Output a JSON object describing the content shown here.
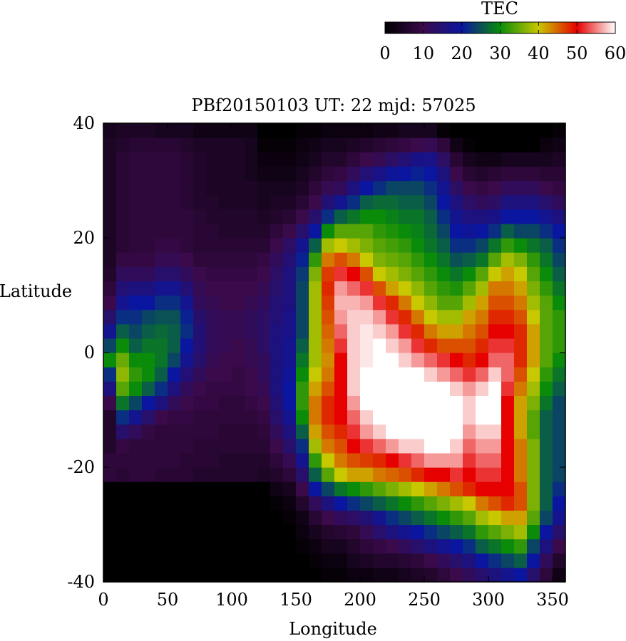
{
  "chart_data": {
    "type": "heatmap",
    "title": "PBf20150103  UT: 22  mjd: 57025",
    "xlabel": "Longitude",
    "ylabel": "Latitude",
    "xlim": [
      0,
      360
    ],
    "ylim": [
      -40,
      40
    ],
    "x_ticks": [
      "0",
      "50",
      "100",
      "150",
      "200",
      "250",
      "300",
      "350"
    ],
    "y_ticks": [
      "40",
      "20",
      "0",
      "-20",
      "-40"
    ],
    "grid": false,
    "colorbar": {
      "label": "TEC",
      "range": [
        0,
        60
      ],
      "ticks": [
        "0",
        "10",
        "20",
        "30",
        "40",
        "50",
        "60"
      ],
      "placement": "top-right"
    },
    "columns": [
      {
        "lon": 0,
        "z": [
          0,
          0,
          0,
          0,
          0,
          0,
          0,
          8,
          8,
          6,
          6,
          6,
          10,
          16,
          22,
          30,
          24,
          18,
          14,
          10,
          8,
          6,
          5,
          5,
          5,
          5,
          5,
          5,
          5,
          5,
          5,
          4
        ]
      },
      {
        "lon": 10,
        "z": [
          0,
          0,
          0,
          0,
          0,
          0,
          0,
          7,
          8,
          9,
          14,
          22,
          28,
          34,
          37,
          35,
          30,
          26,
          22,
          18,
          15,
          12,
          9,
          7,
          7,
          7,
          7,
          7,
          7,
          7,
          6,
          5
        ]
      },
      {
        "lon": 20,
        "z": [
          0,
          0,
          0,
          0,
          0,
          0,
          0,
          8,
          8,
          8,
          12,
          18,
          24,
          30,
          32,
          30,
          26,
          24,
          22,
          20,
          16,
          12,
          9,
          8,
          8,
          8,
          8,
          8,
          8,
          8,
          7,
          5
        ]
      },
      {
        "lon": 30,
        "z": [
          0,
          0,
          0,
          0,
          0,
          0,
          0,
          8,
          8,
          8,
          9,
          14,
          20,
          26,
          30,
          30,
          28,
          26,
          24,
          20,
          16,
          12,
          9,
          8,
          8,
          8,
          8,
          8,
          8,
          8,
          7,
          5
        ]
      },
      {
        "lon": 40,
        "z": [
          0,
          0,
          0,
          0,
          0,
          0,
          0,
          7,
          8,
          8,
          8,
          10,
          16,
          22,
          26,
          28,
          28,
          27,
          25,
          22,
          18,
          14,
          11,
          9,
          8,
          8,
          8,
          8,
          8,
          8,
          7,
          4
        ]
      },
      {
        "lon": 50,
        "z": [
          0,
          0,
          0,
          0,
          0,
          0,
          0,
          7,
          8,
          8,
          8,
          9,
          12,
          16,
          20,
          24,
          26,
          26,
          25,
          22,
          18,
          14,
          11,
          9,
          8,
          8,
          8,
          8,
          8,
          8,
          7,
          4
        ]
      },
      {
        "lon": 60,
        "z": [
          0,
          0,
          0,
          0,
          0,
          0,
          0,
          7,
          7,
          8,
          8,
          9,
          10,
          12,
          15,
          18,
          20,
          22,
          21,
          18,
          15,
          12,
          10,
          8,
          8,
          8,
          7,
          7,
          7,
          7,
          6,
          4
        ]
      },
      {
        "lon": 70,
        "z": [
          0,
          0,
          0,
          0,
          0,
          0,
          0,
          6,
          7,
          7,
          8,
          8,
          9,
          10,
          12,
          14,
          15,
          15,
          14,
          12,
          11,
          10,
          8,
          7,
          7,
          7,
          6,
          6,
          6,
          6,
          5,
          3
        ]
      },
      {
        "lon": 80,
        "z": [
          0,
          0,
          0,
          0,
          0,
          0,
          0,
          6,
          7,
          7,
          8,
          8,
          9,
          9,
          10,
          11,
          12,
          12,
          12,
          11,
          10,
          9,
          8,
          7,
          7,
          6,
          6,
          5,
          5,
          5,
          5,
          3
        ]
      },
      {
        "lon": 90,
        "z": [
          0,
          0,
          0,
          0,
          0,
          0,
          0,
          6,
          6,
          7,
          7,
          8,
          8,
          9,
          10,
          10,
          11,
          11,
          11,
          10,
          10,
          9,
          8,
          7,
          6,
          6,
          5,
          5,
          5,
          5,
          5,
          3
        ]
      },
      {
        "lon": 100,
        "z": [
          0,
          0,
          0,
          0,
          0,
          0,
          0,
          6,
          6,
          7,
          7,
          8,
          8,
          9,
          9,
          10,
          10,
          11,
          11,
          10,
          10,
          9,
          8,
          7,
          6,
          6,
          5,
          5,
          5,
          5,
          5,
          3
        ]
      },
      {
        "lon": 110,
        "z": [
          0,
          0,
          0,
          0,
          0,
          0,
          0,
          6,
          6,
          7,
          7,
          8,
          9,
          10,
          10,
          11,
          11,
          12,
          12,
          11,
          10,
          9,
          8,
          7,
          6,
          6,
          5,
          5,
          4,
          4,
          4,
          3
        ]
      },
      {
        "lon": 120,
        "z": [
          0,
          0,
          0,
          0,
          0,
          0,
          0,
          5,
          6,
          7,
          8,
          9,
          10,
          11,
          12,
          12,
          13,
          13,
          13,
          12,
          11,
          10,
          9,
          7,
          6,
          5,
          4,
          4,
          3,
          2,
          1,
          0
        ]
      },
      {
        "lon": 130,
        "z": [
          0,
          0,
          0,
          0,
          0,
          1,
          3,
          6,
          8,
          10,
          12,
          14,
          15,
          16,
          16,
          16,
          16,
          16,
          15,
          15,
          14,
          13,
          12,
          10,
          8,
          6,
          5,
          4,
          3,
          2,
          1,
          0
        ]
      },
      {
        "lon": 140,
        "z": [
          0,
          0,
          0,
          0,
          1,
          2,
          4,
          8,
          11,
          14,
          16,
          18,
          20,
          20,
          19,
          18,
          18,
          17,
          17,
          16,
          16,
          16,
          15,
          13,
          10,
          7,
          5,
          4,
          3,
          2,
          1,
          0
        ]
      },
      {
        "lon": 150,
        "z": [
          0,
          0,
          1,
          2,
          3,
          6,
          10,
          14,
          18,
          22,
          26,
          30,
          32,
          32,
          30,
          28,
          26,
          24,
          24,
          24,
          24,
          23,
          21,
          18,
          14,
          10,
          7,
          5,
          4,
          3,
          2,
          1
        ]
      },
      {
        "lon": 160,
        "z": [
          0,
          1,
          2,
          4,
          7,
          12,
          20,
          26,
          32,
          38,
          42,
          44,
          44,
          42,
          40,
          38,
          38,
          38,
          38,
          38,
          38,
          36,
          32,
          26,
          20,
          14,
          10,
          8,
          6,
          4,
          3,
          1
        ]
      },
      {
        "lon": 170,
        "z": [
          1,
          2,
          4,
          6,
          10,
          16,
          24,
          34,
          40,
          44,
          46,
          48,
          48,
          46,
          44,
          43,
          44,
          45,
          46,
          47,
          48,
          47,
          44,
          38,
          30,
          22,
          15,
          11,
          8,
          6,
          4,
          2
        ]
      },
      {
        "lon": 180,
        "z": [
          1,
          2,
          4,
          7,
          12,
          20,
          28,
          40,
          44,
          46,
          48,
          50,
          50,
          50,
          50,
          50,
          52,
          54,
          56,
          57,
          56,
          52,
          46,
          40,
          34,
          26,
          18,
          12,
          9,
          6,
          4,
          2
        ]
      },
      {
        "lon": 190,
        "z": [
          2,
          4,
          6,
          8,
          13,
          22,
          30,
          42,
          46,
          50,
          52,
          54,
          56,
          58,
          58,
          58,
          58,
          58,
          58,
          57,
          54,
          50,
          44,
          38,
          34,
          28,
          22,
          16,
          12,
          8,
          5,
          2
        ]
      },
      {
        "lon": 200,
        "z": [
          2,
          5,
          8,
          11,
          15,
          24,
          32,
          42,
          47,
          52,
          56,
          58,
          60,
          60,
          60,
          59,
          59,
          59,
          58,
          56,
          52,
          46,
          40,
          36,
          34,
          30,
          26,
          20,
          15,
          10,
          6,
          2
        ]
      },
      {
        "lon": 210,
        "z": [
          3,
          6,
          9,
          14,
          18,
          26,
          34,
          44,
          48,
          54,
          58,
          60,
          60,
          60,
          60,
          60,
          60,
          58,
          56,
          52,
          46,
          40,
          36,
          34,
          32,
          30,
          27,
          22,
          17,
          11,
          7,
          3
        ]
      },
      {
        "lon": 220,
        "z": [
          3,
          6,
          10,
          16,
          22,
          28,
          36,
          45,
          50,
          56,
          60,
          60,
          60,
          60,
          60,
          60,
          58,
          56,
          52,
          48,
          42,
          38,
          35,
          33,
          31,
          29,
          27,
          24,
          19,
          13,
          8,
          3
        ]
      },
      {
        "lon": 230,
        "z": [
          4,
          7,
          12,
          18,
          24,
          30,
          38,
          46,
          52,
          58,
          60,
          60,
          60,
          60,
          60,
          58,
          56,
          52,
          48,
          44,
          40,
          36,
          34,
          32,
          30,
          28,
          26,
          24,
          20,
          15,
          9,
          4
        ]
      },
      {
        "lon": 240,
        "z": [
          5,
          8,
          14,
          20,
          26,
          32,
          40,
          48,
          54,
          58,
          60,
          60,
          60,
          60,
          60,
          56,
          52,
          48,
          44,
          40,
          37,
          34,
          32,
          30,
          29,
          28,
          26,
          24,
          21,
          17,
          10,
          4
        ]
      },
      {
        "lon": 250,
        "z": [
          6,
          10,
          16,
          22,
          28,
          34,
          42,
          50,
          56,
          60,
          60,
          60,
          60,
          60,
          58,
          54,
          48,
          44,
          40,
          37,
          34,
          32,
          30,
          28,
          27,
          26,
          24,
          22,
          20,
          17,
          11,
          4
        ]
      },
      {
        "lon": 260,
        "z": [
          8,
          12,
          18,
          24,
          30,
          36,
          44,
          50,
          56,
          60,
          60,
          60,
          60,
          60,
          56,
          52,
          46,
          42,
          38,
          34,
          32,
          30,
          28,
          26,
          24,
          22,
          20,
          18,
          16,
          13,
          8,
          1
        ]
      },
      {
        "lon": 270,
        "z": [
          10,
          14,
          20,
          26,
          32,
          38,
          46,
          52,
          56,
          58,
          60,
          60,
          60,
          58,
          54,
          50,
          46,
          42,
          38,
          34,
          31,
          28,
          25,
          22,
          20,
          18,
          16,
          13,
          10,
          7,
          3,
          0
        ]
      },
      {
        "lon": 280,
        "z": [
          12,
          16,
          22,
          28,
          34,
          40,
          48,
          50,
          52,
          54,
          56,
          58,
          58,
          56,
          52,
          48,
          46,
          44,
          42,
          38,
          34,
          30,
          26,
          22,
          19,
          16,
          13,
          10,
          7,
          4,
          1,
          0
        ]
      },
      {
        "lon": 290,
        "z": [
          14,
          20,
          26,
          32,
          38,
          44,
          50,
          52,
          54,
          56,
          58,
          60,
          60,
          58,
          54,
          50,
          48,
          46,
          44,
          42,
          38,
          34,
          28,
          24,
          20,
          16,
          12,
          9,
          6,
          3,
          0,
          0
        ]
      },
      {
        "lon": 300,
        "z": [
          16,
          22,
          28,
          34,
          40,
          46,
          50,
          52,
          54,
          56,
          58,
          60,
          60,
          60,
          58,
          54,
          52,
          50,
          48,
          46,
          44,
          40,
          34,
          28,
          22,
          17,
          13,
          10,
          7,
          3,
          0,
          0
        ]
      },
      {
        "lon": 310,
        "z": [
          18,
          24,
          30,
          36,
          42,
          48,
          50,
          50,
          50,
          50,
          50,
          50,
          50,
          52,
          54,
          54,
          52,
          50,
          48,
          46,
          44,
          42,
          38,
          32,
          26,
          20,
          16,
          12,
          8,
          4,
          0,
          0
        ]
      },
      {
        "lon": 320,
        "z": [
          20,
          26,
          32,
          38,
          42,
          46,
          46,
          44,
          44,
          44,
          42,
          42,
          42,
          44,
          46,
          48,
          48,
          48,
          46,
          44,
          42,
          40,
          36,
          30,
          24,
          20,
          16,
          12,
          8,
          4,
          0,
          0
        ]
      },
      {
        "lon": 330,
        "z": [
          14,
          20,
          24,
          30,
          34,
          36,
          36,
          36,
          36,
          36,
          34,
          34,
          36,
          38,
          40,
          42,
          42,
          42,
          40,
          38,
          36,
          34,
          32,
          28,
          24,
          20,
          16,
          12,
          8,
          4,
          0,
          0
        ]
      },
      {
        "lon": 340,
        "z": [
          8,
          12,
          16,
          20,
          24,
          26,
          26,
          26,
          26,
          26,
          26,
          26,
          28,
          30,
          32,
          34,
          34,
          34,
          34,
          34,
          32,
          30,
          28,
          26,
          22,
          18,
          14,
          10,
          7,
          4,
          2,
          0
        ]
      },
      {
        "lon": 350,
        "z": [
          3,
          6,
          10,
          14,
          18,
          20,
          22,
          24,
          24,
          24,
          24,
          24,
          24,
          26,
          28,
          30,
          32,
          32,
          32,
          30,
          28,
          26,
          24,
          22,
          20,
          16,
          12,
          9,
          7,
          5,
          3,
          1
        ]
      }
    ],
    "lat_rows": [
      -38.75,
      -36.25,
      -33.75,
      -31.25,
      -28.75,
      -26.25,
      -23.75,
      -21.25,
      -18.75,
      -16.25,
      -13.75,
      -11.25,
      -8.75,
      -6.25,
      -3.75,
      -1.25,
      1.25,
      3.75,
      6.25,
      8.75,
      11.25,
      13.75,
      16.25,
      18.75,
      21.25,
      23.75,
      26.25,
      28.75,
      31.25,
      33.75,
      36.25,
      38.75
    ]
  }
}
